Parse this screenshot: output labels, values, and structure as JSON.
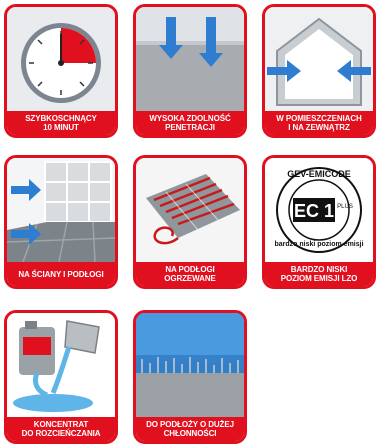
{
  "tiles": [
    {
      "icon": "stopwatch-icon",
      "label": [
        "SZYBKOSCHNĄCY",
        "10 MINUT"
      ]
    },
    {
      "icon": "penetration-icon",
      "label": [
        "WYSOKA ZDOLNOŚĆ",
        "PENETRACJI"
      ]
    },
    {
      "icon": "house-icon",
      "label": [
        "W POMIESZCZENIACH",
        "I NA ZEWNĄTRZ"
      ]
    },
    {
      "icon": "wall-floor-tiles-icon",
      "label": [
        "NA ŚCIANY I PODŁOGI"
      ]
    },
    {
      "icon": "underfloor-heating-icon",
      "label": [
        "NA PODŁOGI",
        "OGRZEWANE"
      ]
    },
    {
      "icon": "emicode-ec1-plus-logo",
      "label": [
        "BARDZO NISKI",
        "POZIOM EMISJI LZO"
      ],
      "logo_text": [
        "GEV-EMICODE",
        "EC 1",
        "PLUS",
        "bardzo niski poziom emisji"
      ]
    },
    {
      "icon": "concentrate-dilution-icon",
      "label": [
        "KONCENTRAT",
        "DO ROZCIEŃCZANIA"
      ]
    },
    {
      "icon": "absorbent-substrate-icon",
      "label": [
        "DO PODŁOŻY O DUŻEJ",
        "CHŁONNOŚCI"
      ]
    }
  ],
  "colors": {
    "accent": "#e0101f",
    "arrow": "#2e7dd1"
  }
}
